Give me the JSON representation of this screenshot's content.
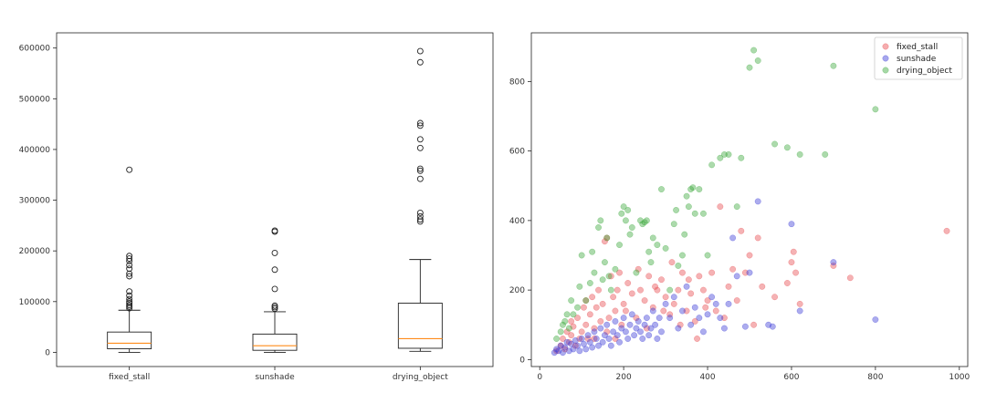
{
  "chart_data": [
    {
      "type": "boxplot",
      "categories": [
        "fixed_stall",
        "sunshade",
        "drying_object"
      ],
      "ylim": [
        -28000,
        630000
      ],
      "yticks": [
        0,
        100000,
        200000,
        300000,
        400000,
        500000,
        600000
      ],
      "ytick_labels": [
        "0",
        "100000",
        "200000",
        "300000",
        "400000",
        "500000",
        "600000"
      ],
      "grid": false,
      "boxes": [
        {
          "name": "fixed_stall",
          "whisker_low": 0,
          "q1": 7000,
          "median": 18000,
          "q3": 40000,
          "whisker_high": 83000,
          "outliers": [
            87000,
            90000,
            93000,
            97000,
            100000,
            105000,
            112000,
            120000,
            150000,
            155000,
            165000,
            172000,
            180000,
            185000,
            190000,
            360000
          ]
        },
        {
          "name": "sunshade",
          "whisker_low": 0,
          "q1": 4000,
          "median": 13000,
          "q3": 36000,
          "whisker_high": 80000,
          "outliers": [
            86000,
            89000,
            92000,
            125000,
            163000,
            196000,
            238000,
            240000
          ]
        },
        {
          "name": "drying_object",
          "whisker_low": 2000,
          "q1": 8000,
          "median": 27000,
          "q3": 97000,
          "whisker_high": 183000,
          "outliers": [
            258000,
            262000,
            268000,
            275000,
            342000,
            358000,
            362000,
            403000,
            420000,
            447000,
            452000,
            572000,
            594000
          ]
        }
      ],
      "colors": {
        "box": "#222222",
        "median": "#ff8c1a",
        "outlier": "#222222"
      }
    },
    {
      "type": "scatter",
      "xlim": [
        -20,
        1020
      ],
      "ylim": [
        -20,
        940
      ],
      "xticks": [
        0,
        200,
        400,
        600,
        800,
        1000
      ],
      "xtick_labels": [
        "0",
        "200",
        "400",
        "600",
        "800",
        "1000"
      ],
      "yticks": [
        0,
        200,
        400,
        600,
        800
      ],
      "ytick_labels": [
        "0",
        "200",
        "400",
        "600",
        "800"
      ],
      "grid": false,
      "legend": "top-right",
      "series": [
        {
          "name": "fixed_stall",
          "color": "#e8474c",
          "points": [
            [
              40,
              25
            ],
            [
              50,
              40
            ],
            [
              55,
              60
            ],
            [
              60,
              30
            ],
            [
              65,
              80
            ],
            [
              70,
              50
            ],
            [
              75,
              70
            ],
            [
              80,
              95
            ],
            [
              85,
              40
            ],
            [
              90,
              120
            ],
            [
              95,
              60
            ],
            [
              100,
              80
            ],
            [
              105,
              150
            ],
            [
              110,
              100
            ],
            [
              115,
              60
            ],
            [
              120,
              130
            ],
            [
              125,
              180
            ],
            [
              130,
              90
            ],
            [
              135,
              150
            ],
            [
              140,
              200
            ],
            [
              145,
              110
            ],
            [
              150,
              160
            ],
            [
              155,
              340
            ],
            [
              160,
              350
            ],
            [
              165,
              120
            ],
            [
              170,
              240
            ],
            [
              175,
              180
            ],
            [
              180,
              140
            ],
            [
              185,
              200
            ],
            [
              190,
              250
            ],
            [
              195,
              100
            ],
            [
              200,
              160
            ],
            [
              210,
              220
            ],
            [
              220,
              190
            ],
            [
              230,
              120
            ],
            [
              240,
              200
            ],
            [
              250,
              170
            ],
            [
              260,
              240
            ],
            [
              270,
              150
            ],
            [
              280,
              200
            ],
            [
              290,
              230
            ],
            [
              300,
              180
            ],
            [
              310,
              130
            ],
            [
              320,
              160
            ],
            [
              330,
              200
            ],
            [
              340,
              250
            ],
            [
              350,
              140
            ],
            [
              360,
              190
            ],
            [
              370,
              110
            ],
            [
              380,
              240
            ],
            [
              390,
              200
            ],
            [
              400,
              170
            ],
            [
              410,
              250
            ],
            [
              420,
              140
            ],
            [
              430,
              440
            ],
            [
              440,
              120
            ],
            [
              450,
              210
            ],
            [
              460,
              260
            ],
            [
              470,
              170
            ],
            [
              480,
              370
            ],
            [
              490,
              250
            ],
            [
              500,
              300
            ],
            [
              510,
              100
            ],
            [
              520,
              350
            ],
            [
              530,
              210
            ],
            [
              560,
              180
            ],
            [
              590,
              220
            ],
            [
              600,
              280
            ],
            [
              605,
              310
            ],
            [
              610,
              250
            ],
            [
              620,
              160
            ],
            [
              700,
              270
            ],
            [
              740,
              235
            ],
            [
              970,
              370
            ],
            [
              75,
              110
            ],
            [
              110,
              170
            ],
            [
              130,
              60
            ],
            [
              160,
              80
            ],
            [
              180,
              60
            ],
            [
              205,
              140
            ],
            [
              235,
              260
            ],
            [
              255,
              90
            ],
            [
              275,
              210
            ],
            [
              295,
              140
            ],
            [
              315,
              280
            ],
            [
              335,
              100
            ],
            [
              355,
              230
            ],
            [
              375,
              60
            ],
            [
              395,
              150
            ]
          ]
        },
        {
          "name": "sunshade",
          "color": "#3a3ad6",
          "points": [
            [
              35,
              20
            ],
            [
              40,
              30
            ],
            [
              45,
              25
            ],
            [
              50,
              40
            ],
            [
              55,
              20
            ],
            [
              60,
              35
            ],
            [
              65,
              50
            ],
            [
              70,
              25
            ],
            [
              75,
              45
            ],
            [
              80,
              30
            ],
            [
              85,
              55
            ],
            [
              90,
              40
            ],
            [
              95,
              25
            ],
            [
              100,
              60
            ],
            [
              105,
              45
            ],
            [
              110,
              30
            ],
            [
              115,
              70
            ],
            [
              120,
              50
            ],
            [
              125,
              35
            ],
            [
              130,
              80
            ],
            [
              135,
              60
            ],
            [
              140,
              40
            ],
            [
              145,
              90
            ],
            [
              150,
              50
            ],
            [
              155,
              70
            ],
            [
              160,
              100
            ],
            [
              165,
              60
            ],
            [
              170,
              40
            ],
            [
              175,
              80
            ],
            [
              180,
              110
            ],
            [
              185,
              70
            ],
            [
              190,
              50
            ],
            [
              195,
              90
            ],
            [
              200,
              120
            ],
            [
              205,
              80
            ],
            [
              210,
              60
            ],
            [
              215,
              100
            ],
            [
              220,
              130
            ],
            [
              225,
              70
            ],
            [
              230,
              90
            ],
            [
              235,
              110
            ],
            [
              240,
              80
            ],
            [
              245,
              60
            ],
            [
              250,
              100
            ],
            [
              255,
              120
            ],
            [
              260,
              70
            ],
            [
              265,
              90
            ],
            [
              270,
              140
            ],
            [
              275,
              100
            ],
            [
              280,
              60
            ],
            [
              285,
              120
            ],
            [
              290,
              80
            ],
            [
              300,
              160
            ],
            [
              310,
              120
            ],
            [
              320,
              180
            ],
            [
              330,
              90
            ],
            [
              340,
              140
            ],
            [
              350,
              210
            ],
            [
              360,
              100
            ],
            [
              370,
              150
            ],
            [
              380,
              120
            ],
            [
              390,
              80
            ],
            [
              400,
              130
            ],
            [
              410,
              180
            ],
            [
              420,
              160
            ],
            [
              430,
              120
            ],
            [
              440,
              90
            ],
            [
              450,
              160
            ],
            [
              460,
              350
            ],
            [
              470,
              240
            ],
            [
              490,
              95
            ],
            [
              500,
              250
            ],
            [
              520,
              455
            ],
            [
              545,
              100
            ],
            [
              555,
              95
            ],
            [
              600,
              390
            ],
            [
              620,
              140
            ],
            [
              700,
              280
            ],
            [
              800,
              115
            ]
          ]
        },
        {
          "name": "drying_object",
          "color": "#3aa83a",
          "points": [
            [
              40,
              60
            ],
            [
              50,
              80
            ],
            [
              55,
              100
            ],
            [
              60,
              110
            ],
            [
              70,
              90
            ],
            [
              75,
              170
            ],
            [
              80,
              130
            ],
            [
              90,
              150
            ],
            [
              100,
              300
            ],
            [
              110,
              170
            ],
            [
              120,
              220
            ],
            [
              130,
              250
            ],
            [
              140,
              380
            ],
            [
              145,
              400
            ],
            [
              150,
              230
            ],
            [
              155,
              280
            ],
            [
              160,
              350
            ],
            [
              170,
              200
            ],
            [
              180,
              260
            ],
            [
              190,
              330
            ],
            [
              195,
              420
            ],
            [
              200,
              440
            ],
            [
              205,
              400
            ],
            [
              210,
              430
            ],
            [
              220,
              380
            ],
            [
              230,
              250
            ],
            [
              240,
              400
            ],
            [
              245,
              390
            ],
            [
              250,
              395
            ],
            [
              255,
              400
            ],
            [
              260,
              310
            ],
            [
              270,
              350
            ],
            [
              280,
              330
            ],
            [
              290,
              490
            ],
            [
              300,
              320
            ],
            [
              310,
              200
            ],
            [
              320,
              390
            ],
            [
              330,
              270
            ],
            [
              340,
              300
            ],
            [
              350,
              470
            ],
            [
              355,
              440
            ],
            [
              360,
              490
            ],
            [
              365,
              495
            ],
            [
              370,
              420
            ],
            [
              380,
              490
            ],
            [
              390,
              420
            ],
            [
              400,
              300
            ],
            [
              410,
              560
            ],
            [
              430,
              580
            ],
            [
              440,
              590
            ],
            [
              450,
              590
            ],
            [
              470,
              440
            ],
            [
              480,
              580
            ],
            [
              500,
              840
            ],
            [
              510,
              890
            ],
            [
              520,
              860
            ],
            [
              560,
              620
            ],
            [
              590,
              610
            ],
            [
              620,
              590
            ],
            [
              680,
              590
            ],
            [
              700,
              845
            ],
            [
              800,
              720
            ],
            [
              65,
              130
            ],
            [
              95,
              210
            ],
            [
              125,
              310
            ],
            [
              165,
              240
            ],
            [
              215,
              360
            ],
            [
              265,
              280
            ],
            [
              325,
              430
            ],
            [
              345,
              360
            ]
          ]
        }
      ]
    }
  ]
}
